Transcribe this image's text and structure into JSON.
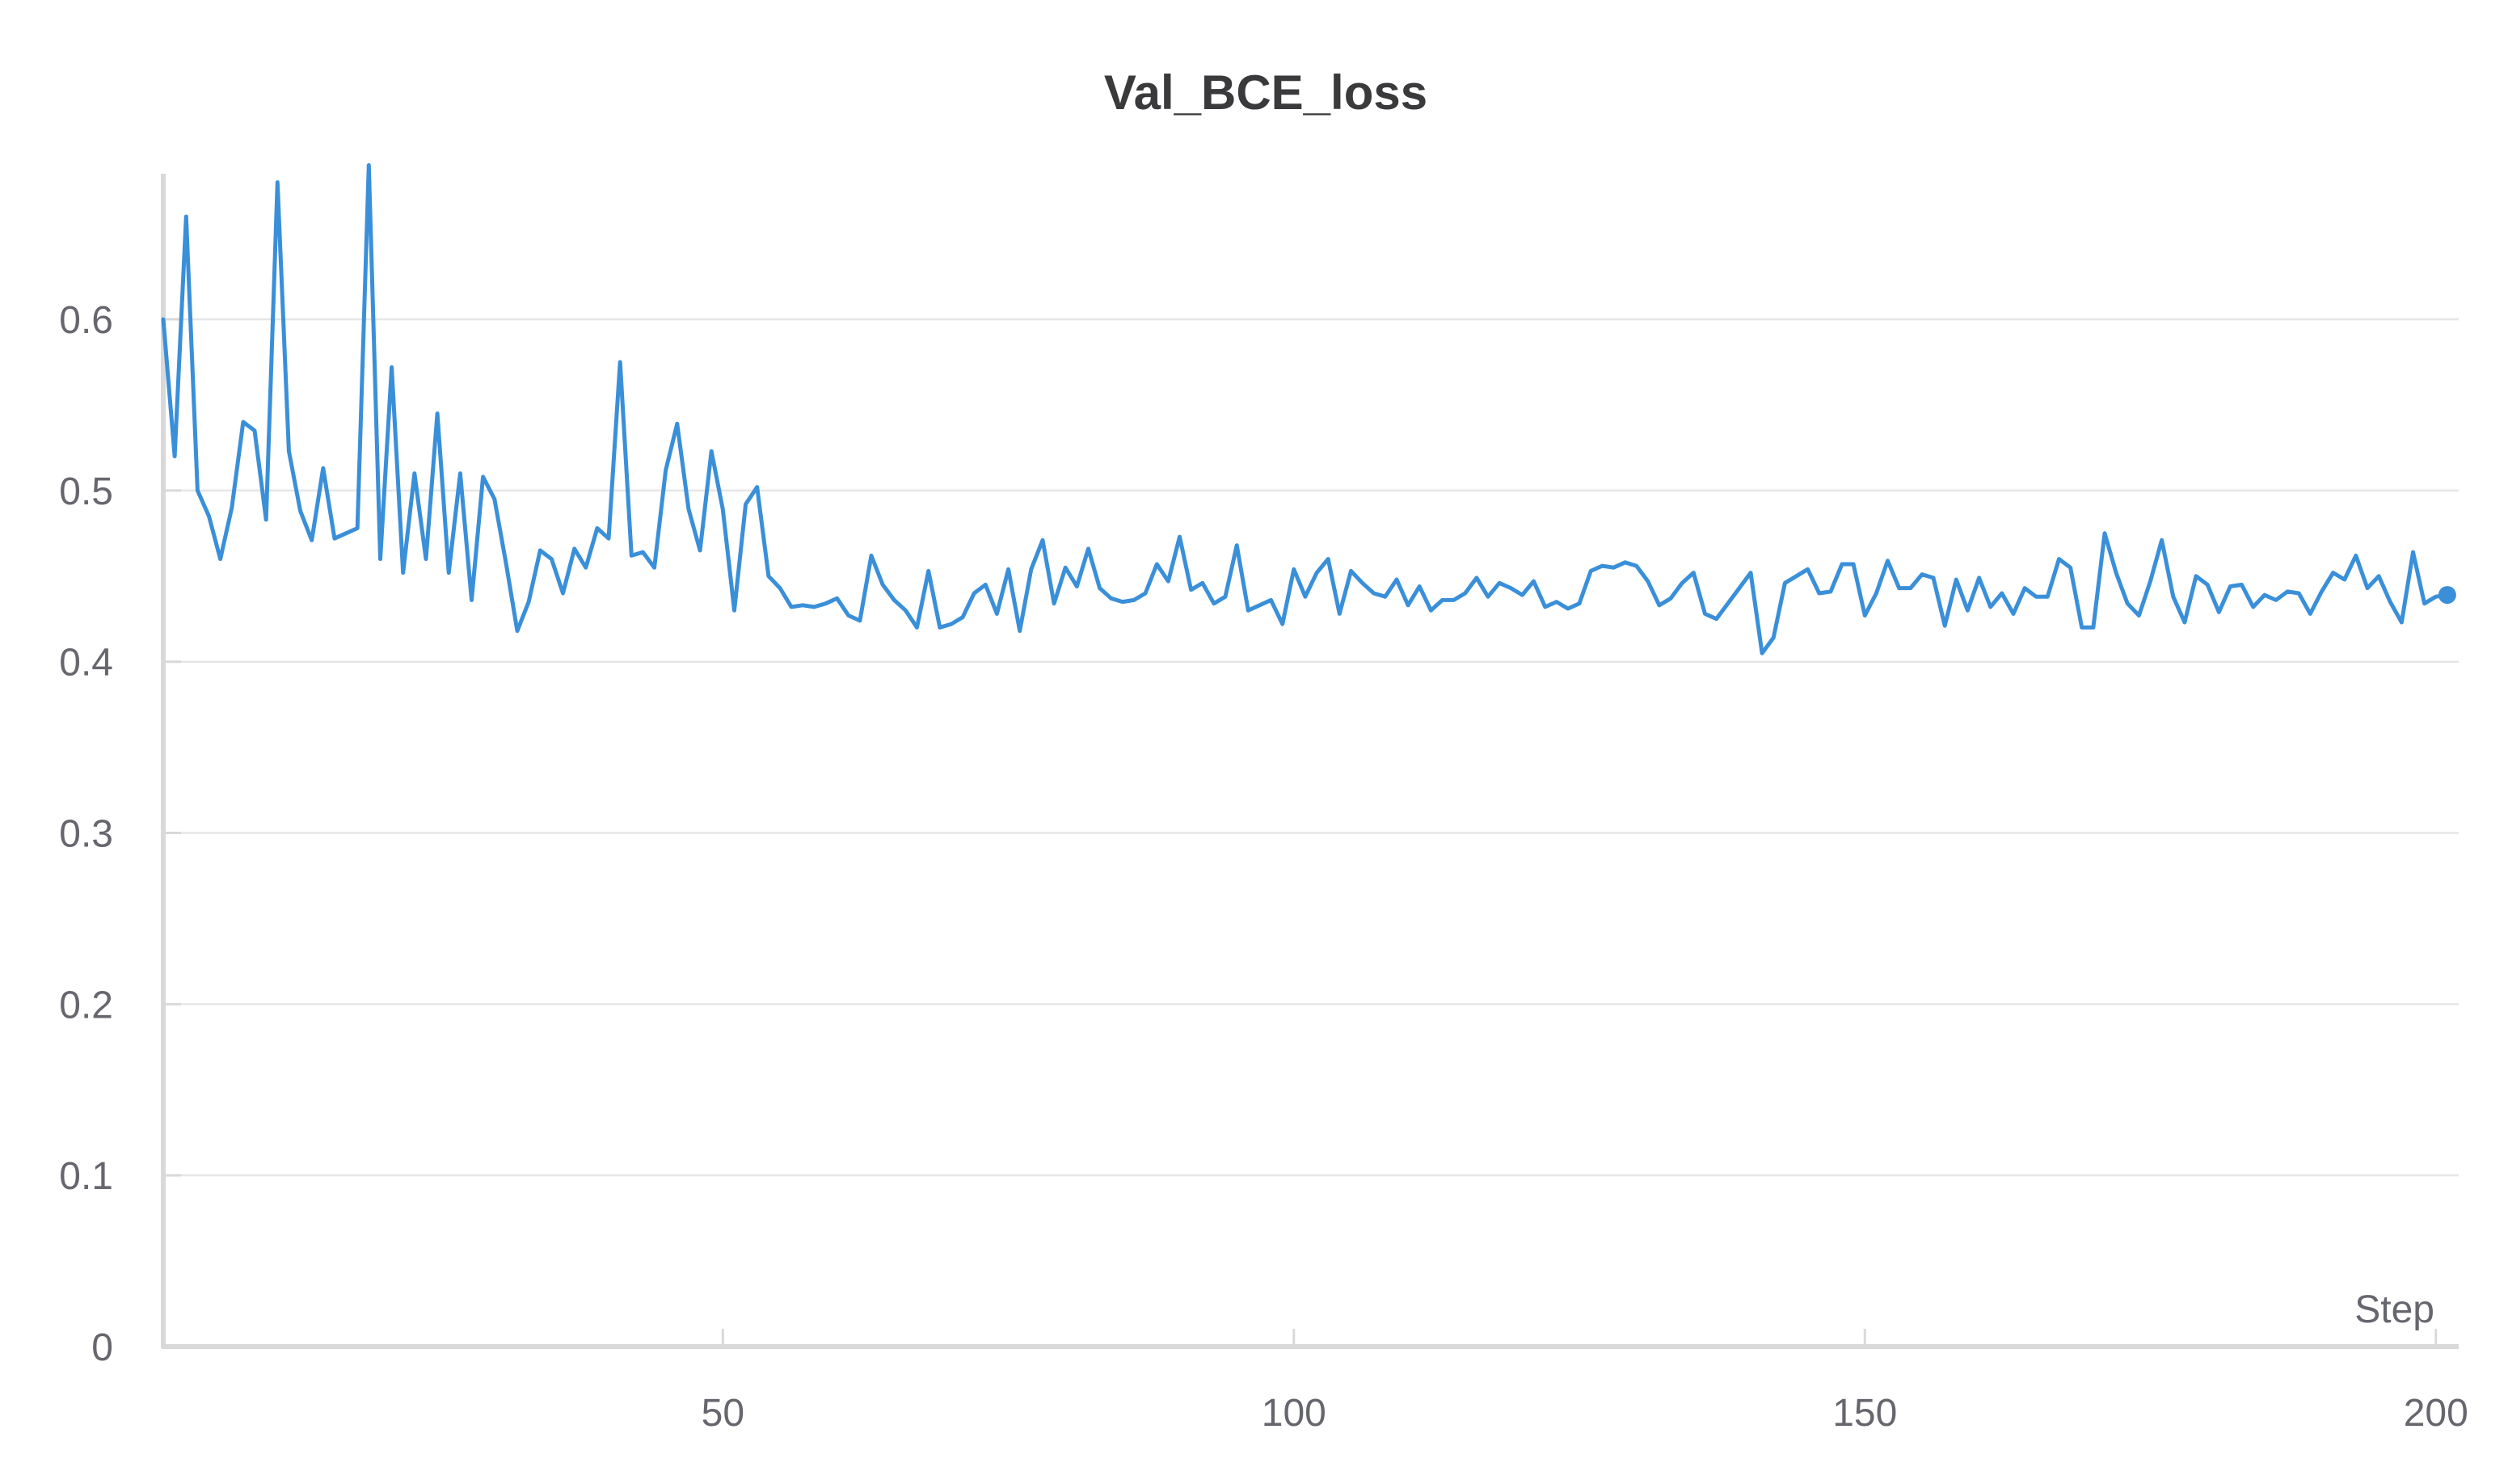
{
  "chart_data": {
    "type": "line",
    "title": "Val_BCE_loss",
    "xlabel": "Step",
    "ylabel": "",
    "xlim": [
      1,
      202
    ],
    "ylim": [
      0,
      0.685
    ],
    "x_ticks": [
      50,
      100,
      150,
      200
    ],
    "x_tick_labels": [
      "50",
      "100",
      "150",
      "200"
    ],
    "y_ticks": [
      0,
      0.1,
      0.2,
      0.3,
      0.4,
      0.5,
      0.6
    ],
    "y_tick_labels": [
      "0",
      "0.1",
      "0.2",
      "0.3",
      "0.4",
      "0.5",
      "0.6"
    ],
    "grid": true,
    "legend": "none",
    "colors": {
      "line": "#3a8fd9",
      "grid": "#e6e6e6",
      "axis": "#d9d9d9",
      "text": "#66666e",
      "title": "#3a3a3c"
    },
    "series": [
      {
        "x": [
          1,
          2,
          3,
          4,
          5,
          6,
          7,
          8,
          9,
          10,
          11,
          12,
          13,
          14,
          15,
          16,
          17,
          18,
          19,
          20,
          21,
          22,
          23,
          24,
          25,
          26,
          27,
          28,
          29,
          30,
          31,
          32,
          33,
          34,
          35,
          36,
          37,
          38,
          39,
          40,
          41,
          42,
          43,
          44,
          45,
          46,
          47,
          48,
          49,
          50,
          51,
          52,
          53,
          54,
          55,
          56,
          57,
          58,
          59,
          60,
          61,
          62,
          63,
          64,
          65,
          66,
          67,
          68,
          69,
          70,
          71,
          72,
          73,
          74,
          75,
          76,
          77,
          78,
          79,
          80,
          81,
          82,
          83,
          84,
          85,
          86,
          87,
          88,
          89,
          90,
          91,
          92,
          93,
          94,
          95,
          96,
          97,
          98,
          99,
          100,
          101,
          102,
          103,
          104,
          105,
          106,
          107,
          108,
          109,
          110,
          111,
          112,
          113,
          114,
          115,
          116,
          117,
          118,
          119,
          120,
          121,
          122,
          123,
          124,
          125,
          126,
          127,
          128,
          129,
          130,
          131,
          132,
          133,
          134,
          135,
          136,
          137,
          138,
          139,
          140,
          141,
          142,
          143,
          144,
          145,
          146,
          147,
          148,
          149,
          150,
          151,
          152,
          153,
          154,
          155,
          156,
          157,
          158,
          159,
          160,
          161,
          162,
          163,
          164,
          165,
          166,
          167,
          168,
          169,
          170,
          171,
          172,
          173,
          174,
          175,
          176,
          177,
          178,
          179,
          180,
          181,
          182,
          183,
          184,
          185,
          186,
          187,
          188,
          189,
          190,
          191,
          192,
          193,
          194,
          195,
          196,
          197,
          198,
          199,
          200,
          201
        ],
        "y": [
          0.6,
          0.52,
          0.66,
          0.5,
          0.485,
          0.46,
          0.49,
          0.54,
          0.535,
          0.483,
          0.68,
          0.523,
          0.488,
          0.471,
          0.513,
          0.472,
          0.475,
          0.478,
          0.69,
          0.46,
          0.572,
          0.452,
          0.51,
          0.46,
          0.545,
          0.452,
          0.51,
          0.436,
          0.508,
          0.495,
          0.458,
          0.418,
          0.435,
          0.465,
          0.46,
          0.44,
          0.466,
          0.455,
          0.478,
          0.472,
          0.575,
          0.462,
          0.464,
          0.455,
          0.512,
          0.539,
          0.489,
          0.465,
          0.523,
          0.489,
          0.43,
          0.492,
          0.502,
          0.45,
          0.443,
          0.432,
          0.433,
          0.432,
          0.434,
          0.437,
          0.427,
          0.424,
          0.462,
          0.445,
          0.436,
          0.43,
          0.42,
          0.453,
          0.42,
          0.422,
          0.426,
          0.44,
          0.445,
          0.428,
          0.454,
          0.418,
          0.454,
          0.471,
          0.434,
          0.455,
          0.444,
          0.466,
          0.443,
          0.437,
          0.435,
          0.436,
          0.44,
          0.457,
          0.447,
          0.473,
          0.442,
          0.446,
          0.434,
          0.438,
          0.468,
          0.43,
          0.433,
          0.436,
          0.422,
          0.454,
          0.438,
          0.452,
          0.46,
          0.428,
          0.453,
          0.446,
          0.44,
          0.438,
          0.448,
          0.433,
          0.444,
          0.43,
          0.436,
          0.436,
          0.44,
          0.449,
          0.438,
          0.446,
          0.443,
          0.439,
          0.447,
          0.432,
          0.435,
          0.431,
          0.434,
          0.453,
          0.456,
          0.455,
          0.458,
          0.456,
          0.447,
          0.433,
          0.437,
          0.446,
          0.452,
          0.428,
          0.425,
          0.434,
          0.443,
          0.452,
          0.405,
          0.414,
          0.446,
          0.45,
          0.454,
          0.44,
          0.441,
          0.457,
          0.457,
          0.427,
          0.44,
          0.459,
          0.443,
          0.443,
          0.451,
          0.449,
          0.421,
          0.448,
          0.43,
          0.449,
          0.432,
          0.44,
          0.428,
          0.443,
          0.438,
          0.438,
          0.46,
          0.455,
          0.42,
          0.42,
          0.475,
          0.452,
          0.434,
          0.427,
          0.447,
          0.471,
          0.438,
          0.423,
          0.45,
          0.445,
          0.429,
          0.444,
          0.445,
          0.432,
          0.439,
          0.436,
          0.441,
          0.44,
          0.428,
          0.441,
          0.452,
          0.448,
          0.462,
          0.443,
          0.45,
          0.435,
          0.423,
          0.464,
          0.434,
          0.438,
          0.439
        ]
      }
    ]
  }
}
